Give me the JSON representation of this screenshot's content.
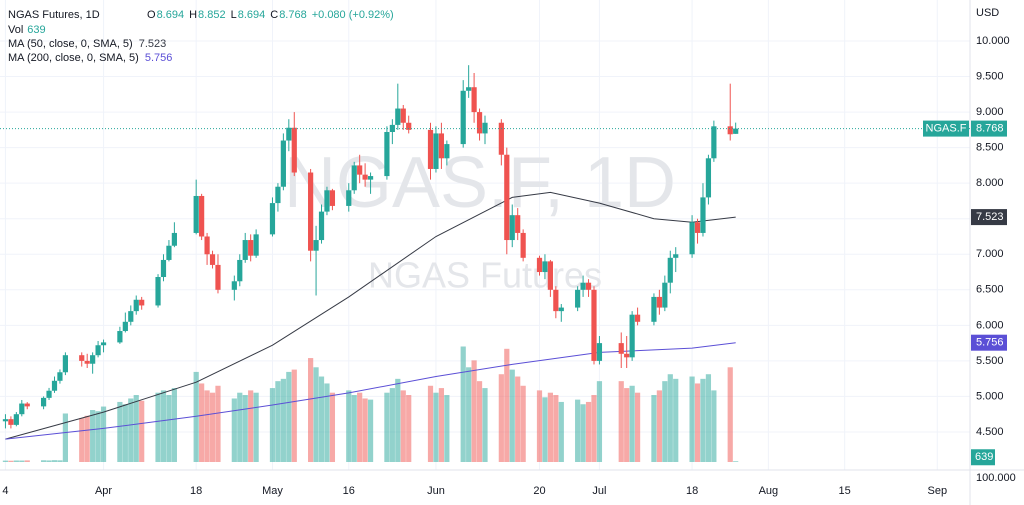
{
  "chart_data": {
    "type": "candlestick",
    "title": "NGAS Futures, 1D",
    "watermark": "NGAS.F, 1D",
    "watermark_subtitle": "NGAS Futures",
    "currency": "USD",
    "symbol_tag": "NGAS.F",
    "ohlc_labels": [
      "O",
      "H",
      "L",
      "C"
    ],
    "change": "+0.080 (+0.92%)",
    "volume_label": "Vol",
    "volume_scale_label": "100.000",
    "up_color": "#26a69a",
    "down_color": "#ef5350",
    "x": [
      "03-14",
      "03-15",
      "03-16",
      "03-17",
      "03-18",
      "03-21",
      "03-22",
      "03-23",
      "03-24",
      "03-25",
      "03-28",
      "03-29",
      "03-30",
      "03-31",
      "04-01",
      "04-04",
      "04-05",
      "04-06",
      "04-07",
      "04-08",
      "04-11",
      "04-12",
      "04-13",
      "04-14",
      "04-18",
      "04-19",
      "04-20",
      "04-21",
      "04-22",
      "04-25",
      "04-26",
      "04-27",
      "04-28",
      "04-29",
      "05-02",
      "05-03",
      "05-04",
      "05-05",
      "05-06",
      "05-09",
      "05-10",
      "05-11",
      "05-12",
      "05-13",
      "05-16",
      "05-17",
      "05-18",
      "05-19",
      "05-20",
      "05-23",
      "05-24",
      "05-25",
      "05-26",
      "05-27",
      "05-31",
      "06-01",
      "06-02",
      "06-03",
      "06-06",
      "06-07",
      "06-08",
      "06-09",
      "06-10",
      "06-13",
      "06-14",
      "06-15",
      "06-16",
      "06-17",
      "06-20",
      "06-21",
      "06-22",
      "06-23",
      "06-24",
      "06-27",
      "06-28",
      "06-29",
      "06-30",
      "07-01",
      "07-05",
      "07-06",
      "07-07",
      "07-08",
      "07-11",
      "07-12",
      "07-13",
      "07-14",
      "07-15",
      "07-18",
      "07-19",
      "07-20",
      "07-21",
      "07-22",
      "07-25",
      "07-26"
    ],
    "open": [
      4.65,
      4.68,
      4.6,
      4.75,
      4.9,
      4.86,
      4.98,
      5.08,
      5.22,
      5.34,
      5.58,
      5.5,
      5.46,
      5.58,
      5.72,
      5.76,
      5.92,
      6.05,
      6.2,
      6.36,
      6.28,
      6.68,
      6.92,
      7.12,
      7.3,
      7.82,
      7.25,
      7.0,
      6.85,
      6.5,
      6.62,
      6.92,
      7.2,
      6.98,
      7.28,
      7.72,
      7.95,
      8.6,
      8.78,
      8.15,
      7.05,
      7.2,
      7.6,
      7.9,
      7.68,
      7.9,
      8.25,
      8.12,
      8.05,
      8.1,
      8.72,
      8.82,
      9.05,
      8.85,
      8.75,
      8.2,
      8.7,
      8.35,
      8.55,
      9.3,
      9.35,
      9.0,
      8.7,
      8.85,
      8.4,
      7.2,
      7.55,
      7.3,
      6.95,
      6.75,
      6.9,
      6.5,
      6.2,
      6.25,
      6.5,
      6.6,
      6.5,
      5.5,
      5.75,
      5.6,
      5.55,
      6.15,
      6.05,
      6.4,
      6.25,
      6.6,
      6.95,
      7.0,
      7.45,
      7.3,
      7.8,
      8.35,
      8.8,
      8.694
    ],
    "high": [
      4.75,
      4.72,
      4.78,
      4.95,
      4.92,
      5.0,
      5.12,
      5.28,
      5.38,
      5.62,
      5.62,
      5.6,
      5.62,
      5.78,
      5.8,
      5.98,
      6.18,
      6.28,
      6.42,
      6.4,
      6.72,
      7.0,
      7.2,
      7.45,
      8.05,
      7.85,
      7.3,
      7.05,
      7.0,
      6.7,
      7.0,
      7.3,
      7.28,
      7.35,
      7.8,
      8.0,
      8.7,
      8.9,
      9.0,
      8.2,
      7.4,
      7.7,
      7.95,
      7.92,
      8.0,
      8.3,
      8.4,
      8.28,
      8.15,
      8.8,
      8.9,
      9.4,
      9.1,
      8.95,
      8.85,
      8.8,
      8.85,
      8.6,
      9.45,
      9.66,
      9.55,
      9.05,
      8.95,
      8.9,
      8.5,
      7.7,
      7.65,
      7.35,
      6.98,
      7.0,
      6.92,
      6.55,
      6.3,
      6.55,
      6.7,
      6.65,
      6.55,
      5.85,
      5.9,
      5.85,
      6.2,
      6.25,
      6.45,
      6.5,
      6.7,
      7.05,
      7.1,
      7.55,
      7.5,
      8.0,
      8.4,
      8.88,
      9.4,
      8.852
    ],
    "low": [
      4.55,
      4.55,
      4.58,
      4.72,
      4.82,
      4.82,
      4.95,
      5.05,
      5.18,
      5.3,
      5.42,
      5.4,
      5.32,
      5.55,
      5.62,
      5.74,
      5.9,
      6.0,
      6.15,
      6.22,
      6.25,
      6.62,
      6.9,
      7.1,
      7.28,
      7.2,
      6.85,
      6.8,
      6.45,
      6.35,
      6.55,
      6.88,
      6.9,
      6.95,
      7.25,
      7.6,
      7.9,
      8.45,
      8.1,
      6.9,
      6.42,
      7.15,
      7.55,
      7.62,
      7.6,
      7.85,
      8.0,
      7.95,
      7.85,
      8.05,
      8.55,
      8.75,
      8.75,
      8.7,
      8.05,
      8.15,
      8.2,
      8.25,
      8.5,
      9.2,
      8.85,
      8.6,
      8.55,
      8.25,
      7.0,
      7.1,
      7.2,
      6.9,
      6.7,
      6.65,
      6.4,
      6.1,
      6.05,
      6.2,
      6.4,
      6.4,
      5.45,
      5.45,
      5.4,
      5.4,
      5.5,
      6.0,
      6.0,
      6.15,
      6.2,
      6.45,
      6.75,
      6.95,
      7.15,
      7.25,
      7.7,
      8.3,
      8.6,
      8.694
    ],
    "close": [
      4.68,
      4.6,
      4.75,
      4.9,
      4.86,
      4.98,
      5.08,
      5.22,
      5.34,
      5.58,
      5.5,
      5.46,
      5.58,
      5.72,
      5.76,
      5.92,
      6.05,
      6.2,
      6.36,
      6.28,
      6.68,
      6.92,
      7.12,
      7.3,
      7.82,
      7.25,
      7.0,
      6.85,
      6.5,
      6.62,
      6.92,
      7.2,
      6.98,
      7.28,
      7.72,
      7.95,
      8.6,
      8.78,
      8.15,
      7.05,
      7.2,
      7.6,
      7.9,
      7.68,
      7.9,
      8.25,
      8.12,
      8.05,
      8.1,
      8.72,
      8.82,
      9.05,
      8.85,
      8.75,
      8.2,
      8.7,
      8.35,
      8.55,
      9.3,
      9.35,
      9.0,
      8.7,
      8.85,
      8.4,
      7.2,
      7.55,
      7.3,
      6.95,
      6.75,
      6.9,
      6.5,
      6.2,
      6.25,
      6.5,
      6.6,
      6.5,
      5.5,
      5.75,
      5.6,
      5.55,
      6.15,
      6.05,
      6.4,
      6.25,
      6.6,
      6.95,
      7.0,
      7.45,
      7.3,
      7.8,
      8.35,
      8.8,
      8.688,
      8.768
    ],
    "volume": [
      1200,
      1100,
      1300,
      1250,
      1400,
      1500,
      1350,
      1600,
      1450,
      42000,
      38000,
      40000,
      45000,
      44000,
      48000,
      52000,
      50000,
      55000,
      58000,
      53000,
      60000,
      62000,
      58000,
      64000,
      78000,
      68000,
      62000,
      60000,
      66000,
      55000,
      60000,
      58000,
      62000,
      60000,
      64000,
      70000,
      72000,
      78000,
      80000,
      90000,
      82000,
      74000,
      68000,
      60000,
      62000,
      58000,
      60000,
      55000,
      54000,
      60000,
      64000,
      72000,
      62000,
      58000,
      66000,
      60000,
      64000,
      58000,
      100000,
      82000,
      88000,
      70000,
      64000,
      76000,
      98000,
      80000,
      74000,
      66000,
      62000,
      56000,
      60000,
      58000,
      52000,
      54000,
      50000,
      52000,
      58000,
      70000,
      70000,
      64000,
      66000,
      60000,
      58000,
      62000,
      70000,
      76000,
      72000,
      74000,
      68000,
      72000,
      76000,
      62000,
      82000,
      639
    ],
    "moving_averages": [
      {
        "name": "MA (50, close, 0, SMA, 5)",
        "color": "#363a45",
        "x": [
          "03-14",
          "04-01",
          "04-18",
          "05-02",
          "05-16",
          "06-01",
          "06-15",
          "06-22",
          "07-01",
          "07-11",
          "07-18",
          "07-26"
        ],
        "values": [
          4.4,
          4.78,
          5.2,
          5.72,
          6.4,
          7.25,
          7.8,
          7.87,
          7.72,
          7.5,
          7.45,
          7.523
        ]
      },
      {
        "name": "MA (200, close, 0, SMA, 5)",
        "color": "#5b4fd6",
        "x": [
          "03-14",
          "04-01",
          "04-18",
          "05-02",
          "05-16",
          "06-01",
          "06-15",
          "07-01",
          "07-18",
          "07-26"
        ],
        "values": [
          4.4,
          4.55,
          4.72,
          4.88,
          5.05,
          5.28,
          5.45,
          5.62,
          5.68,
          5.756
        ]
      }
    ],
    "xlim": [
      "03-13",
      "09-07"
    ],
    "xticks": [
      {
        "value": "03-14",
        "label": "4"
      },
      {
        "value": "04-01",
        "label": "Apr"
      },
      {
        "value": "04-18",
        "label": "18"
      },
      {
        "value": "05-02",
        "label": "May"
      },
      {
        "value": "05-16",
        "label": "16"
      },
      {
        "value": "06-01",
        "label": "Jun"
      },
      {
        "value": "06-20",
        "label": "20"
      },
      {
        "value": "07-01",
        "label": "Jul"
      },
      {
        "value": "07-18",
        "label": "18"
      },
      {
        "value": "08-01",
        "label": "Aug"
      },
      {
        "value": "08-15",
        "label": "15"
      },
      {
        "value": "09-01",
        "label": "Sep"
      }
    ],
    "ylim": [
      3.965,
      10.577
    ],
    "yticks": [
      {
        "value": 4.5,
        "label": "4.500"
      },
      {
        "value": 5,
        "label": "5.000"
      },
      {
        "value": 5.5,
        "label": "5.500"
      },
      {
        "value": 6,
        "label": "6.000"
      },
      {
        "value": 6.5,
        "label": "6.500"
      },
      {
        "value": 7,
        "label": "7.000"
      },
      {
        "value": 7.5,
        "label": "7.500"
      },
      {
        "value": 8,
        "label": "8.000"
      },
      {
        "value": 8.5,
        "label": "8.500"
      },
      {
        "value": 9,
        "label": "9.000"
      },
      {
        "value": 9.5,
        "label": "9.500"
      },
      {
        "value": 10,
        "label": "10.000"
      }
    ],
    "volume_ylim": [
      0,
      400000
    ],
    "grid": true
  }
}
